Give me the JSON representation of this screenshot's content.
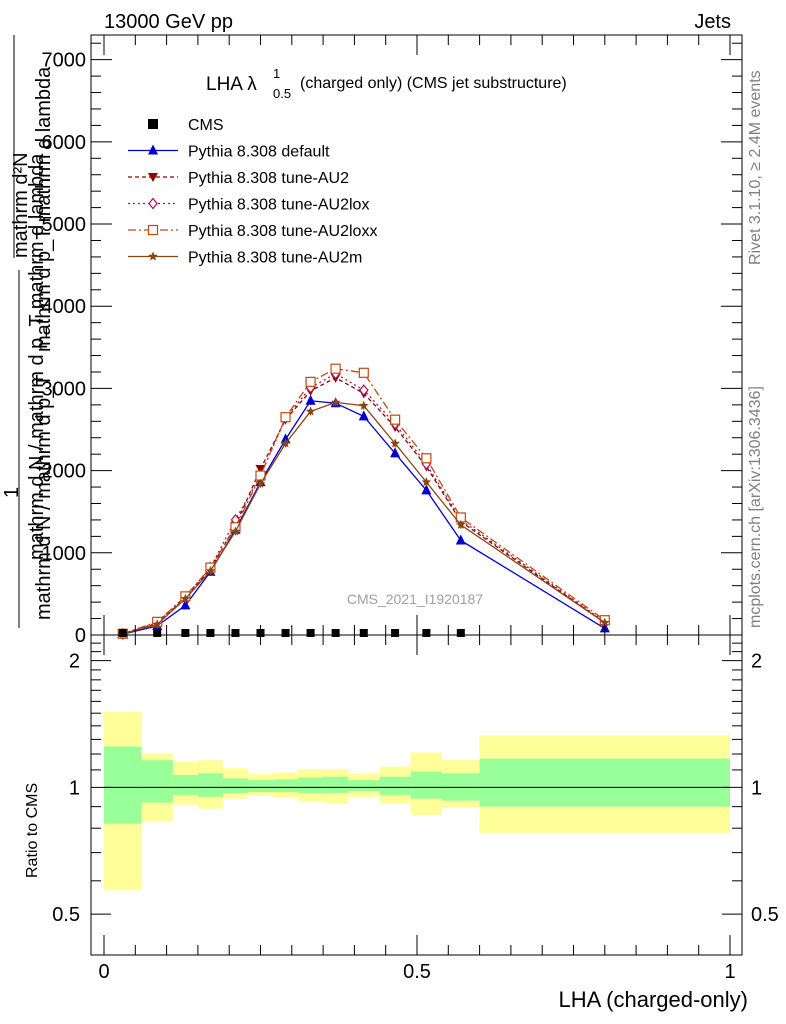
{
  "header": {
    "left": "13000 GeV pp",
    "right": "Jets",
    "side_rivet": "Rivet 3.1.10, ≥ 2.4M events",
    "side_mcplots": "mcplots.cern.ch [arXiv:1306.3436]",
    "watermark": "CMS_2021_I1920187"
  },
  "main_plot": {
    "title_main": "LHA λ",
    "title_sup": "1",
    "title_sub": "0.5",
    "title_rest": "(charged only) (CMS jet substructure)",
    "ylabel_top": "1",
    "ylabel_top_den": "mathrm d N / mathrm d p_T",
    "ylabel_bottom": "mathrm d N / mathrm d p_T mathrm d lambda",
    "ylabel_frac_num": "mathrm d²N",
    "ylabel_frac_den": "mathrm d p_T mathrm d lambda",
    "yticks": [
      "0",
      "1000",
      "2000",
      "3000",
      "4000",
      "5000",
      "6000",
      "7000"
    ]
  },
  "ratio_plot": {
    "ylabel": "Ratio to CMS",
    "yticks": [
      "0.5",
      "1",
      "2"
    ],
    "xlabel": "LHA (charged-only)",
    "xticks": [
      "0",
      "0.5",
      "1"
    ]
  },
  "legend": {
    "items": [
      {
        "label": "CMS",
        "color": "#000000",
        "marker": "square-filled",
        "dash": ""
      },
      {
        "label": "Pythia 8.308 default",
        "color": "#0000cc",
        "marker": "triangle-up",
        "dash": ""
      },
      {
        "label": "Pythia 8.308 tune-AU2",
        "color": "#8b0000",
        "marker": "triangle-down",
        "dash": "4,3"
      },
      {
        "label": "Pythia 8.308 tune-AU2lox",
        "color": "#b0105a",
        "marker": "diamond-open",
        "dash": "2,3"
      },
      {
        "label": "Pythia 8.308 tune-AU2loxx",
        "color": "#c04a10",
        "marker": "square-open",
        "dash": "8,3,2,3"
      },
      {
        "label": "Pythia 8.308 tune-AU2m",
        "color": "#8b4513",
        "marker": "star",
        "dash": ""
      }
    ]
  },
  "chart_data": [
    {
      "type": "line",
      "xlim": [
        0,
        1
      ],
      "ylim": [
        0,
        7300
      ],
      "x": [
        0.03,
        0.085,
        0.13,
        0.17,
        0.21,
        0.25,
        0.29,
        0.33,
        0.37,
        0.415,
        0.465,
        0.515,
        0.57,
        0.8
      ],
      "series": [
        {
          "name": "CMS",
          "values": [
            0,
            0,
            0,
            0,
            0,
            0,
            0,
            0,
            0,
            0,
            0,
            0,
            0,
            null
          ]
        },
        {
          "name": "Pythia 8.308 default",
          "values": [
            10,
            110,
            360,
            770,
            1280,
            1860,
            2380,
            2850,
            2820,
            2660,
            2210,
            1760,
            1150,
            80
          ]
        },
        {
          "name": "Pythia 8.308 tune-AU2",
          "values": [
            12,
            140,
            450,
            800,
            1330,
            2020,
            2620,
            2970,
            3130,
            2940,
            2530,
            2050,
            1380,
            150
          ]
        },
        {
          "name": "Pythia 8.308 tune-AU2lox",
          "values": [
            12,
            150,
            460,
            820,
            1400,
            1940,
            2640,
            3010,
            3180,
            2980,
            2570,
            2080,
            1400,
            160
          ]
        },
        {
          "name": "Pythia 8.308 tune-AU2loxx",
          "values": [
            15,
            160,
            470,
            820,
            1310,
            1940,
            2650,
            3080,
            3240,
            3190,
            2620,
            2150,
            1430,
            180
          ]
        },
        {
          "name": "Pythia 8.308 tune-AU2m",
          "values": [
            12,
            130,
            440,
            780,
            1260,
            1840,
            2330,
            2720,
            2830,
            2790,
            2330,
            1860,
            1340,
            150
          ]
        }
      ]
    },
    {
      "type": "area",
      "xlim": [
        0,
        1
      ],
      "ylim": [
        0.4,
        2.3
      ],
      "ylog": true,
      "reference": 1,
      "bin_edges": [
        0,
        0.06,
        0.11,
        0.15,
        0.19,
        0.23,
        0.27,
        0.31,
        0.35,
        0.39,
        0.44,
        0.49,
        0.54,
        0.6,
        1.0
      ],
      "band_inner_low": [
        0.82,
        0.92,
        0.96,
        0.95,
        0.97,
        0.975,
        0.975,
        0.97,
        0.97,
        0.98,
        0.96,
        0.94,
        0.93,
        0.9
      ],
      "band_inner_high": [
        1.25,
        1.16,
        1.07,
        1.08,
        1.05,
        1.04,
        1.045,
        1.055,
        1.06,
        1.04,
        1.06,
        1.09,
        1.08,
        1.17
      ],
      "band_outer_low": [
        0.57,
        0.83,
        0.91,
        0.89,
        0.94,
        0.955,
        0.945,
        0.925,
        0.915,
        0.95,
        0.915,
        0.86,
        0.895,
        0.78
      ],
      "band_outer_high": [
        1.51,
        1.2,
        1.15,
        1.16,
        1.11,
        1.075,
        1.085,
        1.105,
        1.105,
        1.08,
        1.12,
        1.21,
        1.16,
        1.33
      ]
    }
  ]
}
